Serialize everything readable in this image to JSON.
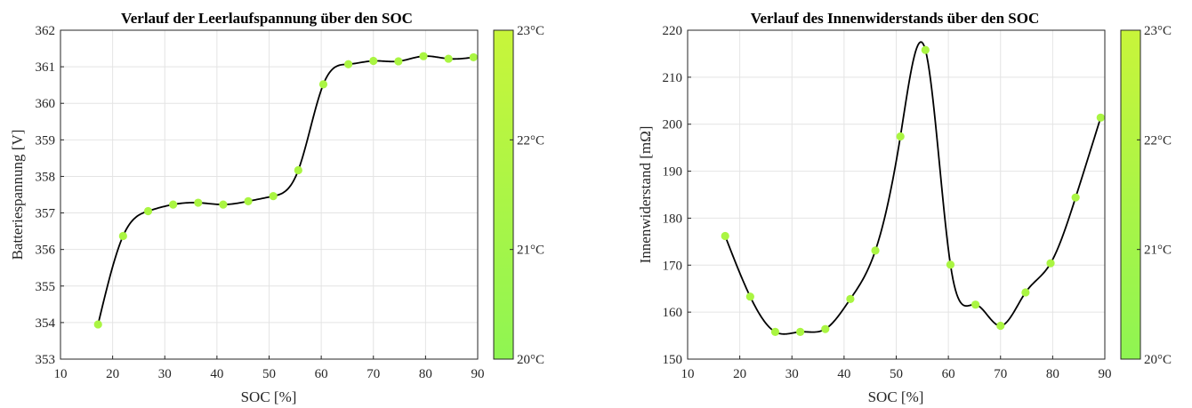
{
  "chart_data": [
    {
      "type": "line",
      "title": "Verlauf der Leerlaufspannung über den SOC",
      "xlabel": "SOC [%]",
      "ylabel": "Batteriespannung [V]",
      "xlim": [
        10,
        90
      ],
      "ylim": [
        353,
        362
      ],
      "xticks": [
        "10",
        "20",
        "30",
        "40",
        "50",
        "60",
        "70",
        "80",
        "90"
      ],
      "yticks": [
        "353",
        "354",
        "355",
        "356",
        "357",
        "358",
        "359",
        "360",
        "361",
        "362"
      ],
      "grid": true,
      "series": [
        {
          "x": [
            17.2,
            22.0,
            26.8,
            31.6,
            36.4,
            41.2,
            46.0,
            50.8,
            55.6,
            60.4,
            65.2,
            70.0,
            74.8,
            79.6,
            84.4,
            89.2
          ],
          "y": [
            353.95,
            356.37,
            357.05,
            357.23,
            357.28,
            357.23,
            357.32,
            357.46,
            358.17,
            360.52,
            361.07,
            361.16,
            361.15,
            361.29,
            361.22,
            361.26
          ],
          "marker_color": "#aaf542",
          "line_color": "#000000"
        }
      ],
      "colorbar": {
        "ticks": [
          "20°C",
          "21°C",
          "22°C",
          "23°C"
        ],
        "color_low": "#8ff552",
        "color_high": "#c8f53a"
      }
    },
    {
      "type": "line",
      "title": "Verlauf des Innenwiderstands über den SOC",
      "xlabel": "SOC [%]",
      "ylabel": "Innenwiderstand [mΩ]",
      "xlim": [
        10,
        90
      ],
      "ylim": [
        150,
        220
      ],
      "xticks": [
        "10",
        "20",
        "30",
        "40",
        "50",
        "60",
        "70",
        "80",
        "90"
      ],
      "yticks": [
        "150",
        "160",
        "170",
        "180",
        "190",
        "200",
        "210",
        "220"
      ],
      "grid": true,
      "series": [
        {
          "x": [
            17.2,
            22.0,
            26.8,
            31.6,
            36.4,
            41.2,
            46.0,
            50.8,
            55.6,
            60.4,
            65.2,
            70.0,
            74.8,
            79.6,
            84.4,
            89.2
          ],
          "y": [
            176.2,
            163.3,
            155.8,
            155.8,
            156.4,
            162.8,
            173.1,
            197.4,
            215.8,
            170.1,
            161.6,
            157.1,
            164.2,
            170.4,
            184.4,
            201.4
          ],
          "marker_color": "#aaf542",
          "line_color": "#000000"
        }
      ],
      "colorbar": {
        "ticks": [
          "20°C",
          "21°C",
          "22°C",
          "23°C"
        ],
        "color_low": "#8ff552",
        "color_high": "#c8f53a"
      }
    }
  ]
}
